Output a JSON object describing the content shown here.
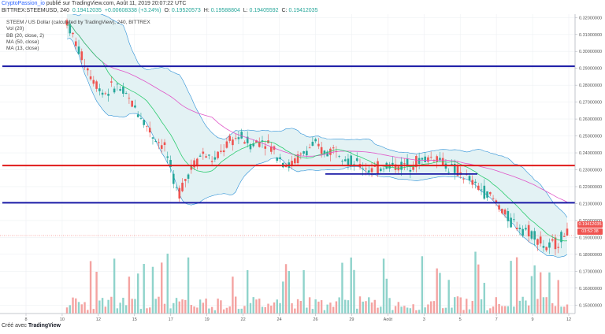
{
  "header": {
    "publisher": "CryptoPassion_io",
    "published_text": "publié sur TradingView.com, Août 11, 2019 20:07:22 UTC",
    "symbol": "BITTREX:STEEMUSD, 240",
    "ohlc_line": {
      "last": "0.19412035",
      "change": "+0.00608338 (+3.24%)",
      "open_label": "O:",
      "open": "0.19520573",
      "high_label": "H:",
      "high": "0.19588804",
      "low_label": "L:",
      "low": "0.19405592",
      "close_label": "C:",
      "close": "0.19412035"
    }
  },
  "legend": {
    "title": "STEEM / US Dollar (calculated by TradingView), 240, BITTREX",
    "indicators": [
      "Vol (20)",
      "BB (20, close, 2)",
      "MA (50, close)",
      "MA (13, close)"
    ]
  },
  "price_tags": {
    "last_price": "0.19412035",
    "countdown": "03:52:38"
  },
  "footer": {
    "created_with": "Créé avec",
    "brand": "TradingView"
  },
  "chart_data": {
    "type": "candlestick",
    "y_axis_labels": [
      "0.32000000",
      "0.31000000",
      "0.30000000",
      "0.29000000",
      "0.28000000",
      "0.27000000",
      "0.26000000",
      "0.25000000",
      "0.24000000",
      "0.23000000",
      "0.22000000",
      "0.21000000",
      "0.20000000",
      "0.19000000",
      "0.18000000",
      "0.17000000",
      "0.16000000",
      "0.15000000"
    ],
    "ylim": [
      0.145,
      0.322
    ],
    "x_axis_labels": [
      "8",
      "10",
      "12",
      "15",
      "17",
      "19",
      "22",
      "24",
      "26",
      "29",
      "Août",
      "3",
      "5",
      "7",
      "9",
      "12"
    ],
    "horizontal_levels": [
      {
        "price": 0.2912,
        "color": "#1a1aa6"
      },
      {
        "price": 0.2325,
        "color": "#e01b1b"
      },
      {
        "price": 0.2105,
        "color": "#1a1aa6"
      }
    ],
    "short_level": {
      "price": 0.2275,
      "color": "#1a1aa6"
    },
    "price_path": [
      [
        0,
        0.318
      ],
      [
        3,
        0.3
      ],
      [
        6,
        0.285
      ],
      [
        9,
        0.275
      ],
      [
        12,
        0.28
      ],
      [
        15,
        0.272
      ],
      [
        18,
        0.262
      ],
      [
        21,
        0.25
      ],
      [
        24,
        0.243
      ],
      [
        27,
        0.215
      ],
      [
        30,
        0.23
      ],
      [
        33,
        0.24
      ],
      [
        36,
        0.235
      ],
      [
        39,
        0.245
      ],
      [
        42,
        0.25
      ],
      [
        45,
        0.245
      ],
      [
        48,
        0.248
      ],
      [
        51,
        0.24
      ],
      [
        54,
        0.232
      ],
      [
        57,
        0.238
      ],
      [
        60,
        0.245
      ],
      [
        63,
        0.24
      ],
      [
        66,
        0.243
      ],
      [
        69,
        0.235
      ],
      [
        72,
        0.232
      ],
      [
        75,
        0.23
      ],
      [
        78,
        0.233
      ],
      [
        81,
        0.232
      ],
      [
        84,
        0.234
      ],
      [
        87,
        0.236
      ],
      [
        90,
        0.238
      ],
      [
        93,
        0.232
      ],
      [
        96,
        0.228
      ],
      [
        99,
        0.222
      ],
      [
        102,
        0.217
      ],
      [
        105,
        0.21
      ],
      [
        108,
        0.2
      ],
      [
        111,
        0.196
      ],
      [
        114,
        0.192
      ],
      [
        117,
        0.183
      ],
      [
        120,
        0.188
      ],
      [
        122,
        0.194
      ]
    ],
    "colors": {
      "up": "#26a69a",
      "down": "#ef5350",
      "ma13": "#2ecc71",
      "ma50": "#e056c8",
      "bb": "#2a8fd6",
      "bb_fill": "#e3f2f4",
      "grid": "#eef0f3"
    }
  }
}
